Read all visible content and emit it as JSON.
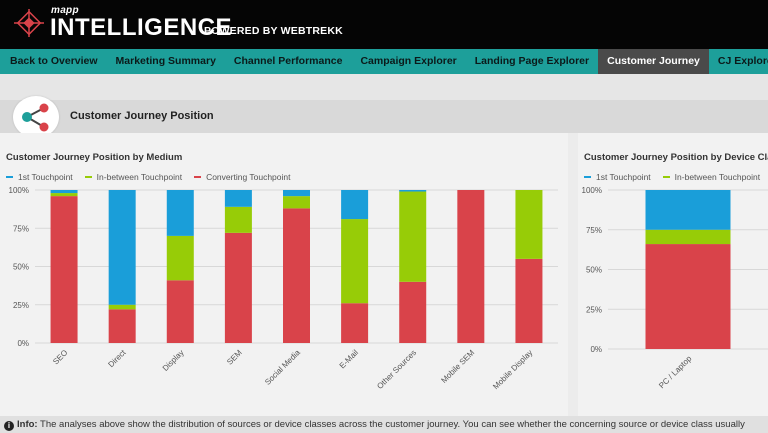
{
  "header": {
    "brand_small": "mapp",
    "brand_big": "INTELLIGENCE",
    "brand_powered": "POWERED BY WEBTREKK"
  },
  "nav": {
    "items": [
      {
        "label": "Back to Overview",
        "active": false
      },
      {
        "label": "Marketing Summary",
        "active": false
      },
      {
        "label": "Channel Performance",
        "active": false
      },
      {
        "label": "Campaign Explorer",
        "active": false
      },
      {
        "label": "Landing Page Explorer",
        "active": false
      },
      {
        "label": "Customer Journey",
        "active": true
      },
      {
        "label": "CJ Explorer",
        "active": false
      }
    ]
  },
  "section": {
    "title": "Customer Journey Position",
    "icon": "share-icon"
  },
  "colors": {
    "first": "#1a9ed9",
    "between": "#97cc07",
    "converting": "#d9434a",
    "nav_bg": "#1d9f9a",
    "nav_active": "#4a4a4a"
  },
  "legend": {
    "first": "1st Touchpoint",
    "between": "In-between Touchpoint",
    "converting": "Converting Touchpoint"
  },
  "chart_data": [
    {
      "type": "bar",
      "stacked": true,
      "title": "Customer Journey Position by Medium",
      "categories": [
        "SEO",
        "Direct",
        "Display",
        "SEM",
        "Social Media",
        "E-Mail",
        "Other Sources",
        "Mobile SEM",
        "Mobile Display"
      ],
      "series": [
        {
          "name": "Converting Touchpoint",
          "values": [
            96,
            22,
            41,
            72,
            88,
            26,
            40,
            100,
            55
          ]
        },
        {
          "name": "In-between Touchpoint",
          "values": [
            2,
            3,
            29,
            17,
            8,
            55,
            59,
            0,
            45
          ]
        },
        {
          "name": "1st Touchpoint",
          "values": [
            2,
            75,
            30,
            11,
            4,
            19,
            1,
            0,
            0
          ]
        }
      ],
      "yticks": [
        "0%",
        "25%",
        "50%",
        "75%",
        "100%"
      ],
      "ylim": [
        0,
        100
      ]
    },
    {
      "type": "bar",
      "stacked": true,
      "title": "Customer Journey Position by Device Class",
      "categories": [
        "PC / Laptop"
      ],
      "series": [
        {
          "name": "Converting Touchpoint",
          "values": [
            66
          ]
        },
        {
          "name": "In-between Touchpoint",
          "values": [
            9
          ]
        },
        {
          "name": "1st Touchpoint",
          "values": [
            25
          ]
        }
      ],
      "yticks": [
        "0%",
        "25%",
        "50%",
        "75%",
        "100%"
      ],
      "ylim": [
        0,
        100
      ]
    }
  ],
  "info": {
    "label": "Info:",
    "text": " The analyses above show the distribution of sources or device classes across the customer journey. You can see whether the concerning source or device class usually"
  }
}
